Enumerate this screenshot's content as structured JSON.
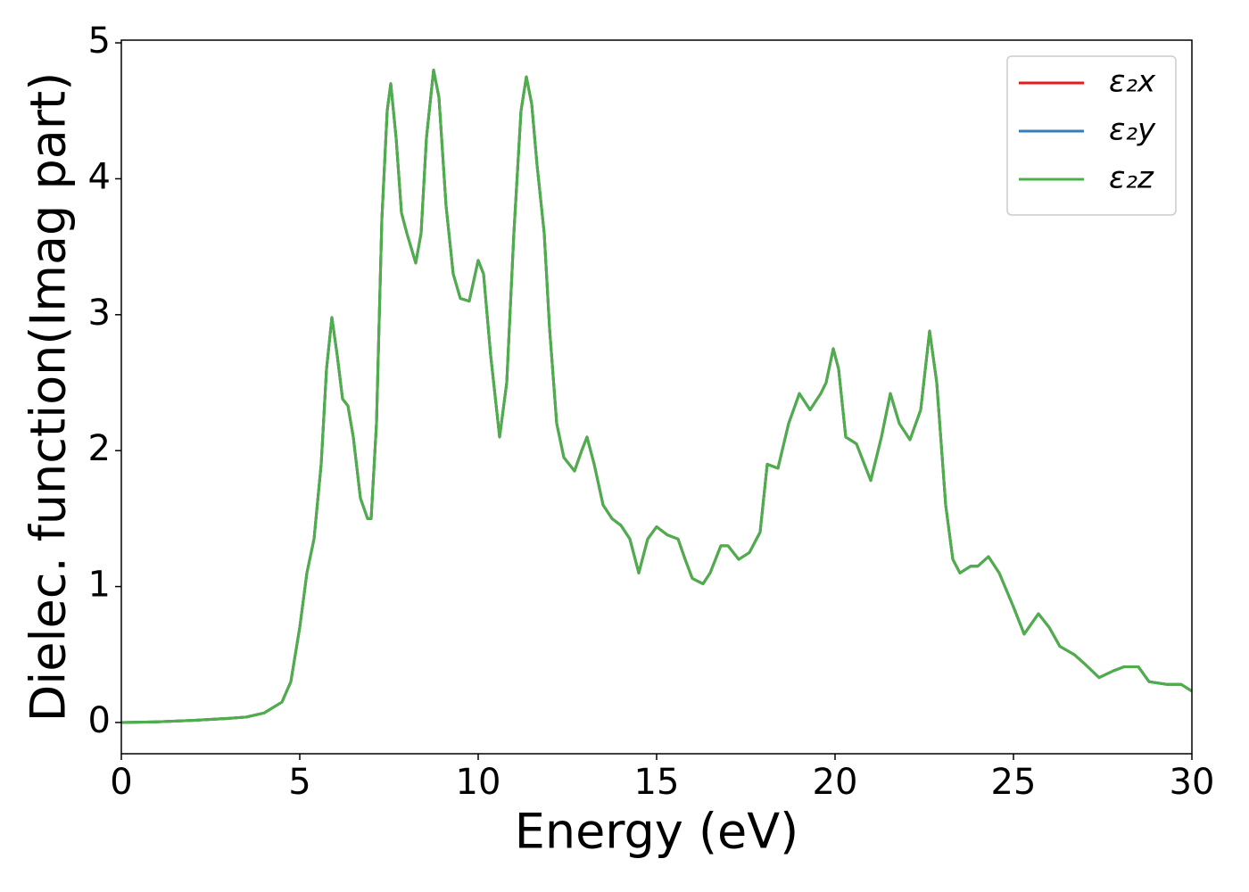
{
  "chart_data": {
    "type": "line",
    "xlabel": "Energy (eV)",
    "ylabel": "Dielec. function(Imag part)",
    "x": [
      0,
      1,
      2,
      3,
      3.5,
      4,
      4.5,
      4.75,
      5,
      5.2,
      5.4,
      5.6,
      5.75,
      5.9,
      6.05,
      6.2,
      6.35,
      6.5,
      6.7,
      6.9,
      7.0,
      7.15,
      7.3,
      7.45,
      7.55,
      7.7,
      7.85,
      8.0,
      8.25,
      8.4,
      8.55,
      8.75,
      8.9,
      9.1,
      9.3,
      9.5,
      9.75,
      10.0,
      10.15,
      10.35,
      10.6,
      10.8,
      11.0,
      11.2,
      11.35,
      11.5,
      11.65,
      11.85,
      12.0,
      12.2,
      12.4,
      12.7,
      12.9,
      13.05,
      13.25,
      13.5,
      13.75,
      14.0,
      14.25,
      14.5,
      14.75,
      15.0,
      15.3,
      15.6,
      15.8,
      16.0,
      16.3,
      16.5,
      16.8,
      17.0,
      17.3,
      17.6,
      17.9,
      18.1,
      18.4,
      18.7,
      19.0,
      19.3,
      19.6,
      19.75,
      19.95,
      20.1,
      20.3,
      20.6,
      21.0,
      21.3,
      21.55,
      21.8,
      22.1,
      22.4,
      22.65,
      22.85,
      23.1,
      23.3,
      23.5,
      23.8,
      24.0,
      24.3,
      24.6,
      25.0,
      25.3,
      25.7,
      26.0,
      26.3,
      26.7,
      27.0,
      27.4,
      27.8,
      28.1,
      28.5,
      28.8,
      29.3,
      29.7,
      30
    ],
    "series": [
      {
        "name": "ε₂x",
        "color": "#e41a1c",
        "values": [
          0,
          0.005,
          0.015,
          0.03,
          0.04,
          0.07,
          0.15,
          0.3,
          0.7,
          1.1,
          1.35,
          1.9,
          2.6,
          2.98,
          2.7,
          2.38,
          2.33,
          2.1,
          1.65,
          1.5,
          1.5,
          2.2,
          3.7,
          4.5,
          4.7,
          4.3,
          3.75,
          3.6,
          3.38,
          3.6,
          4.3,
          4.8,
          4.6,
          3.8,
          3.3,
          3.12,
          3.1,
          3.4,
          3.3,
          2.7,
          2.1,
          2.5,
          3.6,
          4.5,
          4.75,
          4.55,
          4.1,
          3.6,
          2.9,
          2.2,
          1.95,
          1.85,
          2.0,
          2.1,
          1.9,
          1.6,
          1.5,
          1.45,
          1.35,
          1.1,
          1.35,
          1.44,
          1.38,
          1.35,
          1.2,
          1.06,
          1.02,
          1.1,
          1.3,
          1.3,
          1.2,
          1.25,
          1.4,
          1.9,
          1.87,
          2.2,
          2.42,
          2.3,
          2.42,
          2.5,
          2.75,
          2.6,
          2.1,
          2.05,
          1.78,
          2.1,
          2.42,
          2.2,
          2.08,
          2.3,
          2.88,
          2.5,
          1.6,
          1.2,
          1.1,
          1.15,
          1.15,
          1.22,
          1.1,
          0.85,
          0.65,
          0.8,
          0.7,
          0.56,
          0.5,
          0.43,
          0.33,
          0.38,
          0.41,
          0.41,
          0.3,
          0.28,
          0.28,
          0.23
        ]
      },
      {
        "name": "ε₂y",
        "color": "#377eb8",
        "values": [
          0,
          0.005,
          0.015,
          0.03,
          0.04,
          0.07,
          0.15,
          0.3,
          0.7,
          1.1,
          1.35,
          1.9,
          2.6,
          2.98,
          2.7,
          2.38,
          2.33,
          2.1,
          1.65,
          1.5,
          1.5,
          2.2,
          3.7,
          4.5,
          4.7,
          4.3,
          3.75,
          3.6,
          3.38,
          3.6,
          4.3,
          4.8,
          4.6,
          3.8,
          3.3,
          3.12,
          3.1,
          3.4,
          3.3,
          2.7,
          2.1,
          2.5,
          3.6,
          4.5,
          4.75,
          4.55,
          4.1,
          3.6,
          2.9,
          2.2,
          1.95,
          1.85,
          2.0,
          2.1,
          1.9,
          1.6,
          1.5,
          1.45,
          1.35,
          1.1,
          1.35,
          1.44,
          1.38,
          1.35,
          1.2,
          1.06,
          1.02,
          1.1,
          1.3,
          1.3,
          1.2,
          1.25,
          1.4,
          1.9,
          1.87,
          2.2,
          2.42,
          2.3,
          2.42,
          2.5,
          2.75,
          2.6,
          2.1,
          2.05,
          1.78,
          2.1,
          2.42,
          2.2,
          2.08,
          2.3,
          2.88,
          2.5,
          1.6,
          1.2,
          1.1,
          1.15,
          1.15,
          1.22,
          1.1,
          0.85,
          0.65,
          0.8,
          0.7,
          0.56,
          0.5,
          0.43,
          0.33,
          0.38,
          0.41,
          0.41,
          0.3,
          0.28,
          0.28,
          0.23
        ]
      },
      {
        "name": "ε₂z",
        "color": "#4daf4a",
        "values": [
          0,
          0.005,
          0.015,
          0.03,
          0.04,
          0.07,
          0.15,
          0.3,
          0.7,
          1.1,
          1.35,
          1.9,
          2.6,
          2.98,
          2.7,
          2.38,
          2.33,
          2.1,
          1.65,
          1.5,
          1.5,
          2.2,
          3.7,
          4.5,
          4.7,
          4.3,
          3.75,
          3.6,
          3.38,
          3.6,
          4.3,
          4.8,
          4.6,
          3.8,
          3.3,
          3.12,
          3.1,
          3.4,
          3.3,
          2.7,
          2.1,
          2.5,
          3.6,
          4.5,
          4.75,
          4.55,
          4.1,
          3.6,
          2.9,
          2.2,
          1.95,
          1.85,
          2.0,
          2.1,
          1.9,
          1.6,
          1.5,
          1.45,
          1.35,
          1.1,
          1.35,
          1.44,
          1.38,
          1.35,
          1.2,
          1.06,
          1.02,
          1.1,
          1.3,
          1.3,
          1.2,
          1.25,
          1.4,
          1.9,
          1.87,
          2.2,
          2.42,
          2.3,
          2.42,
          2.5,
          2.75,
          2.6,
          2.1,
          2.05,
          1.78,
          2.1,
          2.42,
          2.2,
          2.08,
          2.3,
          2.88,
          2.5,
          1.6,
          1.2,
          1.1,
          1.15,
          1.15,
          1.22,
          1.1,
          0.85,
          0.65,
          0.8,
          0.7,
          0.56,
          0.5,
          0.43,
          0.33,
          0.38,
          0.41,
          0.41,
          0.3,
          0.28,
          0.28,
          0.23
        ]
      }
    ],
    "xlim": [
      0,
      30
    ],
    "xticks": [
      0,
      5,
      10,
      15,
      20,
      25,
      30
    ],
    "ylim": [
      -0.23,
      5.02
    ],
    "yticks": [
      0,
      1,
      2,
      3,
      4,
      5
    ],
    "grid": false,
    "legend": "upper right"
  }
}
